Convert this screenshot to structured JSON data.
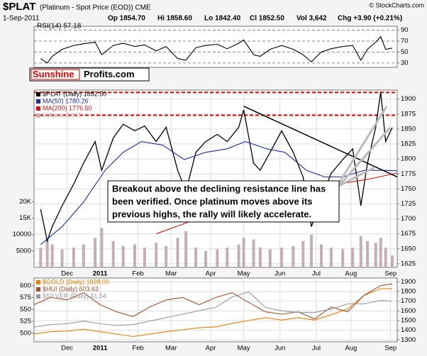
{
  "header": {
    "title": "$PLAT",
    "subtitle": "(Platinum - Spot Price (EOD)) CME",
    "date": "1-Sep-2011",
    "stats": [
      "Op 1854.70",
      "Hi 1858.60",
      "Lo 1842.40",
      "Cl 1852.50",
      "Vol 3,642",
      "Chg +3.90 (+0.21%)"
    ],
    "credit": "© StockCharts.com",
    "logo": [
      "Sunshine",
      "Profits.com"
    ]
  },
  "chart_data": [
    {
      "type": "line",
      "title": "RSI(14) 57.18",
      "xlim": [
        0,
        220
      ],
      "ylim": [
        22,
        97
      ],
      "yticks": [
        30,
        50,
        70,
        90
      ],
      "grid": true,
      "series": [
        {
          "color": "#000000",
          "x": [
            4,
            8,
            11,
            17,
            24,
            30,
            37,
            41,
            48,
            54,
            61,
            67,
            74,
            80,
            87,
            92,
            98,
            104,
            111,
            117,
            124,
            127,
            133,
            137,
            143,
            150,
            157,
            163,
            168,
            174,
            180,
            187,
            193,
            198,
            202,
            207,
            210,
            213,
            217
          ],
          "values": [
            38,
            30,
            42,
            55,
            62,
            65,
            68,
            45,
            62,
            66,
            60,
            63,
            52,
            60,
            38,
            35,
            58,
            62,
            64,
            56,
            66,
            72,
            45,
            42,
            55,
            62,
            55,
            45,
            32,
            50,
            56,
            60,
            62,
            35,
            55,
            68,
            78,
            55,
            57.18
          ]
        }
      ]
    },
    {
      "type": "line",
      "xlim": [
        0,
        220
      ],
      "ylim": [
        1619,
        1915
      ],
      "yticks": [
        1625,
        1650,
        1675,
        1700,
        1725,
        1750,
        1775,
        1800,
        1825,
        1850,
        1875,
        1900
      ],
      "y2lim": [
        0,
        54000
      ],
      "y2ticks": [
        5000,
        10000,
        {
          "value": 15000,
          "label": "15K"
        },
        {
          "value": 20000,
          "label": "20K"
        }
      ],
      "grid": true,
      "xticks": [
        {
          "value": 20,
          "label": "Dec"
        },
        {
          "value": 40,
          "label": "2011"
        },
        {
          "value": 63,
          "label": "Feb"
        },
        {
          "value": 83,
          "label": "Mar"
        },
        {
          "value": 107,
          "label": "Apr"
        },
        {
          "value": 127,
          "label": "May"
        },
        {
          "value": 149,
          "label": "Jun"
        },
        {
          "value": 171,
          "label": "Jul"
        },
        {
          "value": 192,
          "label": "Aug"
        },
        {
          "value": 216,
          "label": "Sep"
        }
      ],
      "hlines": [
        1911,
        1873
      ],
      "hline_color": "#dd0000",
      "trendline": {
        "x": [
          127,
          220
        ],
        "values": [
          1888,
          1770
        ]
      },
      "annotation": [
        "Breakout above the declining resistance line has",
        "been verified. Once platinum moves above its",
        "previous highs, the rally will likely accelerate."
      ],
      "series": [
        {
          "name": "$PLAT (Daily) 1852.50",
          "color": "#000000",
          "x": [
            4,
            8,
            11,
            17,
            24,
            30,
            37,
            41,
            48,
            54,
            61,
            67,
            74,
            80,
            87,
            92,
            98,
            104,
            111,
            117,
            124,
            127,
            133,
            137,
            143,
            150,
            157,
            163,
            168,
            174,
            180,
            187,
            193,
            198,
            202,
            207,
            210,
            213,
            217
          ],
          "values": [
            1716,
            1663,
            1687,
            1722,
            1758,
            1793,
            1829,
            1781,
            1835,
            1858,
            1847,
            1855,
            1829,
            1853,
            1781,
            1746,
            1811,
            1829,
            1841,
            1829,
            1853,
            1882,
            1793,
            1781,
            1811,
            1847,
            1811,
            1770,
            1687,
            1734,
            1776,
            1799,
            1817,
            1722,
            1793,
            1853,
            1912,
            1829,
            1852.5
          ]
        },
        {
          "name": "MA(50) 1780.26",
          "color": "#1f2fa8",
          "x": [
            4,
            17,
            30,
            43,
            54,
            65,
            78,
            91,
            104,
            117,
            128,
            141,
            152,
            165,
            176,
            187,
            200,
            213,
            220
          ],
          "values": [
            1657,
            1687,
            1728,
            1781,
            1811,
            1829,
            1823,
            1799,
            1811,
            1817,
            1829,
            1817,
            1811,
            1781,
            1770,
            1770,
            1781,
            1781,
            1780.26
          ]
        },
        {
          "name": "MA(200) 1776.50",
          "color": "#dd1111",
          "x": [
            74,
            109,
            143,
            178,
            204,
            220
          ],
          "values": [
            1675,
            1710,
            1734,
            1755,
            1767,
            1776.5
          ]
        },
        {
          "name": "Volume 3,642",
          "color": "#c4b0b4",
          "type": "bar",
          "axis": "y2",
          "x": [
            4,
            8,
            11,
            17,
            24,
            30,
            37,
            41,
            48,
            54,
            61,
            67,
            74,
            80,
            87,
            92,
            98,
            104,
            111,
            117,
            124,
            127,
            133,
            137,
            143,
            150,
            157,
            163,
            168,
            174,
            180,
            187,
            193,
            198,
            202,
            207,
            210,
            213,
            217
          ],
          "values": [
            6000,
            9000,
            7000,
            5500,
            6000,
            7000,
            9000,
            12000,
            8000,
            6500,
            7000,
            6000,
            7500,
            6500,
            9000,
            11000,
            6000,
            5000,
            5500,
            6000,
            7000,
            9000,
            8500,
            6000,
            5500,
            6000,
            6500,
            8000,
            10000,
            7000,
            6000,
            5500,
            6000,
            9500,
            8000,
            7500,
            9000,
            6000,
            3642
          ]
        }
      ]
    },
    {
      "type": "line",
      "xlim": [
        0,
        220
      ],
      "ylim": [
        1280,
        1940
      ],
      "yticks": [
        1300,
        1400,
        1500,
        1600,
        1700,
        1800,
        1900
      ],
      "y2lim": [
        482,
        616
      ],
      "y2ticks": [
        500,
        525,
        550,
        575,
        600
      ],
      "y3lim": [
        18,
        55
      ],
      "grid": true,
      "xticks": [
        {
          "value": 20,
          "label": "Dec"
        },
        {
          "value": 40,
          "label": "2011"
        },
        {
          "value": 63,
          "label": "Feb"
        },
        {
          "value": 83,
          "label": "Mar"
        },
        {
          "value": 107,
          "label": "Apr"
        },
        {
          "value": 127,
          "label": "May"
        },
        {
          "value": 149,
          "label": "Jun"
        },
        {
          "value": 171,
          "label": "Jul"
        },
        {
          "value": 192,
          "label": "Aug"
        },
        {
          "value": 216,
          "label": "Sep"
        }
      ],
      "x": [
        0,
        10,
        20,
        30,
        40,
        50,
        60,
        70,
        80,
        90,
        100,
        110,
        120,
        130,
        140,
        150,
        160,
        170,
        180,
        190,
        200,
        210,
        217
      ],
      "series": [
        {
          "name": "$GOLD (Daily) 1828.00",
          "color": "#f07d00",
          "values": [
            1360,
            1385,
            1390,
            1410,
            1385,
            1360,
            1335,
            1360,
            1385,
            1405,
            1425,
            1435,
            1470,
            1500,
            1530,
            1505,
            1530,
            1505,
            1560,
            1620,
            1760,
            1830,
            1828
          ]
        },
        {
          "name": "$HUI (Daily) 603.63",
          "color": "#a0522d",
          "axis": "y2",
          "values": [
            560,
            575,
            570,
            585,
            560,
            545,
            535,
            555,
            570,
            575,
            560,
            575,
            585,
            565,
            545,
            540,
            545,
            530,
            555,
            545,
            580,
            600,
            603.63
          ]
        },
        {
          "name": "$SILVER (Daily) 41.54",
          "color": "#999999",
          "axis": "y3",
          "values": [
            26.5,
            28,
            28.5,
            30,
            28.5,
            27.5,
            28,
            30,
            32,
            34,
            36,
            38,
            44,
            47,
            38,
            36,
            35,
            35,
            37,
            40,
            40,
            42,
            41.54
          ]
        }
      ]
    }
  ]
}
